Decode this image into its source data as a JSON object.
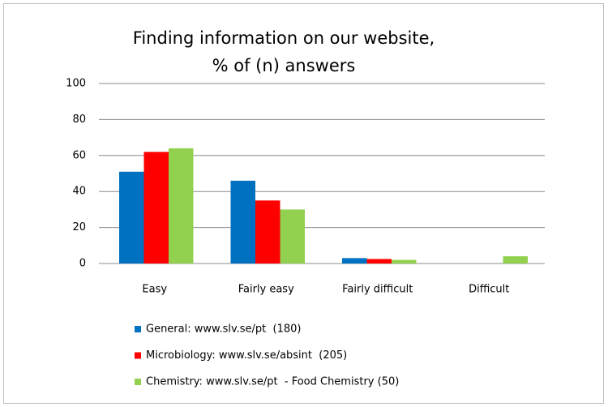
{
  "chart_data": {
    "type": "bar",
    "title": [
      "Finding information on our website,",
      "% of (n) answers"
    ],
    "categories": [
      "Easy",
      "Fairly easy",
      "Fairly difficult",
      "Difficult"
    ],
    "series": [
      {
        "name": "General: www.slv.se/pt  (180)",
        "color": "#0070c0",
        "values": [
          51,
          46,
          3,
          0
        ]
      },
      {
        "name": "Microbiology: www.slv.se/absint  (205)",
        "color": "#ff0000",
        "values": [
          62,
          35,
          2.5,
          0
        ]
      },
      {
        "name": "Chemistry: www.slv.se/pt  - Food Chemistry (50)",
        "color": "#92d050",
        "values": [
          64,
          30,
          2,
          4
        ]
      }
    ],
    "ylim": [
      0,
      100
    ],
    "yticks": [
      0,
      20,
      40,
      60,
      80,
      100
    ],
    "grid": true,
    "legend": "bottom"
  }
}
